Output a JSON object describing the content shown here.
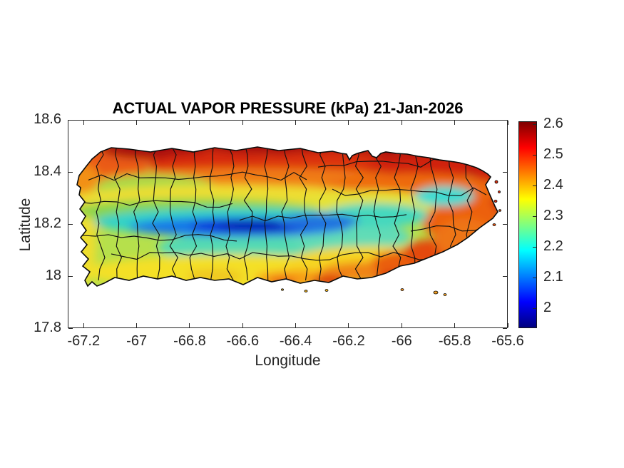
{
  "figure": {
    "background": "#ffffff",
    "kind": "MATLAB-style geographic filled-contour figure"
  },
  "chart_data": {
    "type": "heatmap",
    "title": "ACTUAL VAPOR PRESSURE (kPa) 21-Jan-2026",
    "xlabel": "Longitude",
    "ylabel": "Latitude",
    "region": "Puerto Rico with municipality boundaries",
    "xlim": [
      -67.26,
      -65.6
    ],
    "ylim": [
      17.8,
      18.6
    ],
    "xticks": [
      -67.2,
      -67,
      -66.8,
      -66.6,
      -66.4,
      -66.2,
      -66,
      -65.8,
      -65.6
    ],
    "xtick_labels": [
      "-67.2",
      "-67",
      "-66.8",
      "-66.6",
      "-66.4",
      "-66.2",
      "-66",
      "-65.8",
      "-65.6"
    ],
    "yticks": [
      18.6,
      18.4,
      18.2,
      18,
      17.8
    ],
    "ytick_labels": [
      "18.6",
      "18.4",
      "18.2",
      "18",
      "17.8"
    ],
    "grid": false,
    "colorbar": {
      "position": "right",
      "colormap": "jet",
      "range": [
        1.935,
        2.61
      ],
      "ticks": [
        2.6,
        2.5,
        2.4,
        2.3,
        2.2,
        2.1,
        2
      ],
      "tick_labels": [
        "2.6",
        "2.5",
        "2.4",
        "2.3",
        "2.2",
        "2.1",
        "2"
      ],
      "stops_top_to_bottom": [
        "#7f0000",
        "#ff0000",
        "#ffff00",
        "#00ffff",
        "#0000ff",
        "#00007f"
      ]
    },
    "field_values_kpa": {
      "north_coast": [
        2.45,
        2.61
      ],
      "northwest_corner": [
        2.4,
        2.55
      ],
      "west_interior": [
        2.25,
        2.35
      ],
      "central_mountains_band": [
        1.95,
        2.15
      ],
      "south_central": [
        2.2,
        2.3
      ],
      "south_coast": [
        2.3,
        2.45
      ],
      "southeast_coast": [
        2.4,
        2.5
      ],
      "east_el_yunque": [
        2.15,
        2.25
      ],
      "east_tip": [
        2.45,
        2.55
      ]
    },
    "axis_color": "#262626",
    "boundary_line_color": "#111111"
  }
}
